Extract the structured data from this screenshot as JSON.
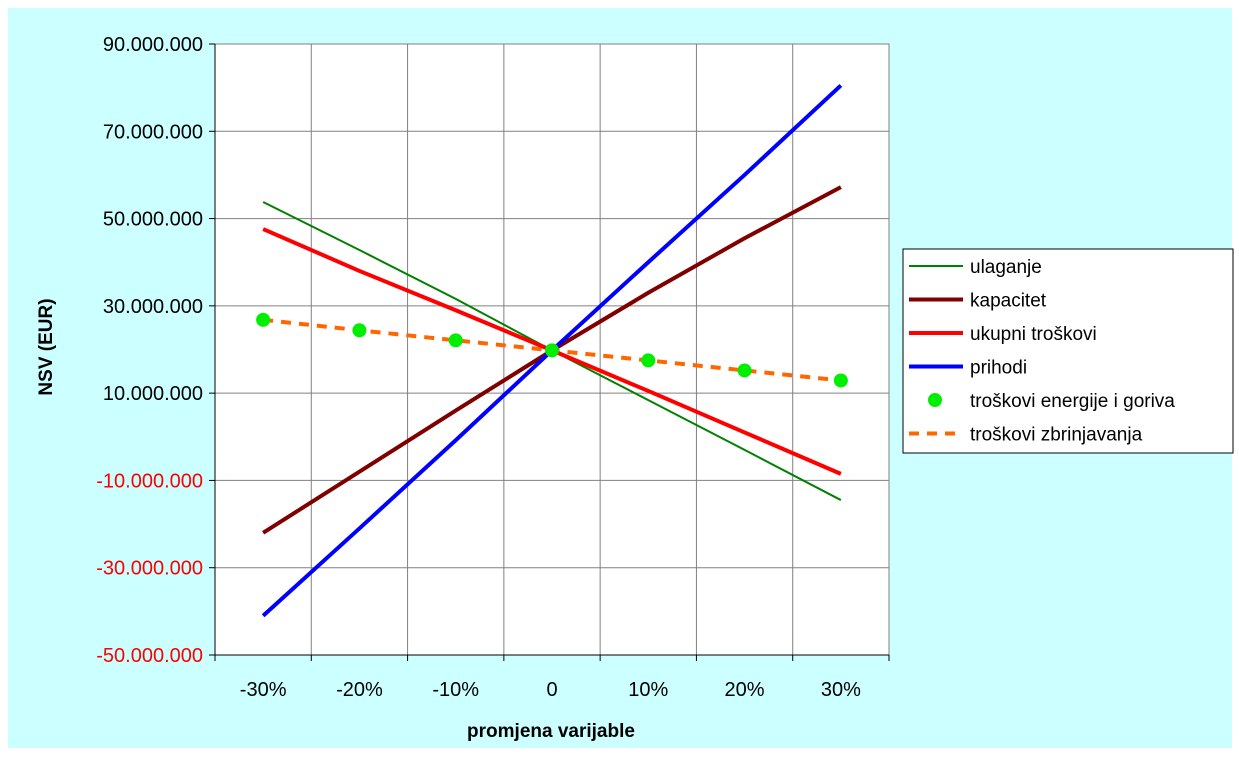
{
  "chart_data": {
    "type": "line",
    "title": "",
    "xlabel": "promjena varijable",
    "ylabel": "NSV (EUR)",
    "categories": [
      "-30%",
      "-20%",
      "-10%",
      "0",
      "10%",
      "20%",
      "30%"
    ],
    "x_ticks": [
      "-30%",
      "-20%",
      "-10%",
      "0",
      "10%",
      "20%",
      "30%"
    ],
    "ylim": [
      -50000000,
      90000000
    ],
    "y_ticks": [
      {
        "value": 90000000,
        "label": "90.000.000"
      },
      {
        "value": 70000000,
        "label": "70.000.000"
      },
      {
        "value": 50000000,
        "label": "50.000.000"
      },
      {
        "value": 30000000,
        "label": "30.000.000"
      },
      {
        "value": 10000000,
        "label": "10.000.000"
      },
      {
        "value": -10000000,
        "label": "-10.000.000"
      },
      {
        "value": -30000000,
        "label": "-30.000.000"
      },
      {
        "value": -50000000,
        "label": "-50.000.000"
      }
    ],
    "grid": true,
    "legend_position": "right",
    "colors": {
      "background": "#ccffff",
      "plot_background": "#ffffff",
      "grid": "#808080",
      "negative_tick_label": "#ff0000",
      "positive_tick_label": "#000000"
    },
    "series": [
      {
        "name": "ulaganje",
        "style": "line",
        "color": "#008000",
        "width": 2,
        "values": [
          53800000,
          42800000,
          31600000,
          19800000,
          8400000,
          -3000000,
          -14500000
        ]
      },
      {
        "name": "kapacitet",
        "style": "line",
        "color": "#800000",
        "width": 4,
        "values": [
          -22000000,
          -8000000,
          6000000,
          19800000,
          33000000,
          45500000,
          57200000
        ]
      },
      {
        "name": "ukupni troškovi",
        "style": "line",
        "color": "#ff0000",
        "width": 4,
        "values": [
          47600000,
          38000000,
          29000000,
          19800000,
          10500000,
          1000000,
          -8500000
        ]
      },
      {
        "name": "prihodi",
        "style": "line",
        "color": "#0000ff",
        "width": 4,
        "values": [
          -41000000,
          -21000000,
          -800000,
          19800000,
          40000000,
          60000000,
          80500000
        ]
      },
      {
        "name": "troškovi energije i goriva",
        "style": "markers",
        "color": "#00ee00",
        "values": [
          26800000,
          24400000,
          22100000,
          19800000,
          17500000,
          15200000,
          12900000
        ]
      },
      {
        "name": "troškovi zbrinjavanja",
        "style": "dashed",
        "color": "#ff6600",
        "width": 4,
        "values": [
          26800000,
          24400000,
          22100000,
          19800000,
          17500000,
          15200000,
          12900000
        ]
      }
    ]
  }
}
